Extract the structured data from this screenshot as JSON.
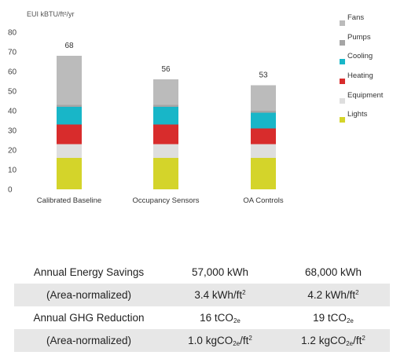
{
  "chart_data": {
    "type": "bar",
    "stacked": true,
    "ylabel": "EUI kBTU/ft²/yr",
    "ylim": [
      0,
      80
    ],
    "yticks": [
      0,
      10,
      20,
      30,
      40,
      50,
      60,
      70,
      80
    ],
    "categories": [
      "Calibrated Baseline",
      "Occupancy Sensors",
      "OA Controls"
    ],
    "totals": [
      "68",
      "56",
      "53"
    ],
    "grid": false,
    "legend_position": "right",
    "series": [
      {
        "name": "Lights",
        "color": "#d4d42a",
        "values": [
          16,
          16,
          16
        ]
      },
      {
        "name": "Equipment",
        "color": "#dedede",
        "values": [
          7,
          7,
          7
        ]
      },
      {
        "name": "Heating",
        "color": "#d82c2c",
        "values": [
          10,
          10,
          8
        ]
      },
      {
        "name": "Cooling",
        "color": "#18b6c8",
        "values": [
          9,
          9,
          8
        ]
      },
      {
        "name": "Pumps",
        "color": "#a5a5a5",
        "values": [
          1,
          1,
          1
        ]
      },
      {
        "name": "Fans",
        "color": "#bbbbbb",
        "values": [
          25,
          13,
          13
        ]
      }
    ]
  },
  "table": {
    "rows": [
      {
        "label": "Annual Energy Savings",
        "v1": "57,000 kWh",
        "v2": "68,000 kWh"
      },
      {
        "label": "(Area-normalized)",
        "v1_num": "3.4 kWh/ft",
        "v1_sup": "2",
        "v2_num": "4.2 kWh/ft",
        "v2_sup": "2"
      },
      {
        "label": "Annual GHG Reduction",
        "v1_num": "16 tCO",
        "v1_sub": "2e",
        "v2_num": "19 tCO",
        "v2_sub": "2e"
      },
      {
        "label": "(Area-normalized)",
        "v1_num": "1.0 kgCO",
        "v1_sub": "2e",
        "v1_mid": "/ft",
        "v1_sup": "2",
        "v2_num": "1.2 kgCO",
        "v2_sub": "2e",
        "v2_mid": "/ft",
        "v2_sup": "2"
      }
    ]
  }
}
